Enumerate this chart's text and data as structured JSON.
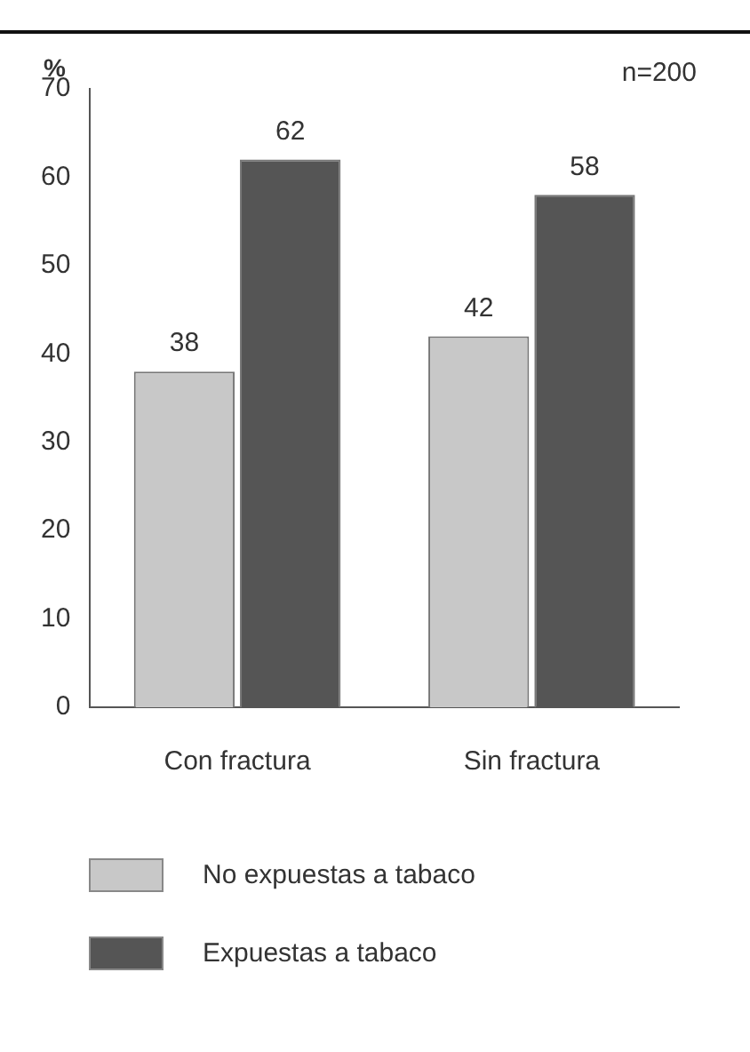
{
  "chart_data": {
    "type": "bar",
    "ylabel": "%",
    "annotations": [
      "n=200"
    ],
    "categories": [
      "Con fractura",
      "Sin fractura"
    ],
    "series": [
      {
        "name": "No expuestas a tabaco",
        "color": "#c8c8c8",
        "values": [
          38,
          42
        ]
      },
      {
        "name": "Expuestas a tabaco",
        "color": "#555555",
        "values": [
          62,
          58
        ]
      }
    ],
    "ylim": [
      0,
      70
    ],
    "yticks": [
      0,
      10,
      20,
      30,
      40,
      50,
      60,
      70
    ],
    "grid": false,
    "legend": "bottom",
    "data_labels": true
  }
}
